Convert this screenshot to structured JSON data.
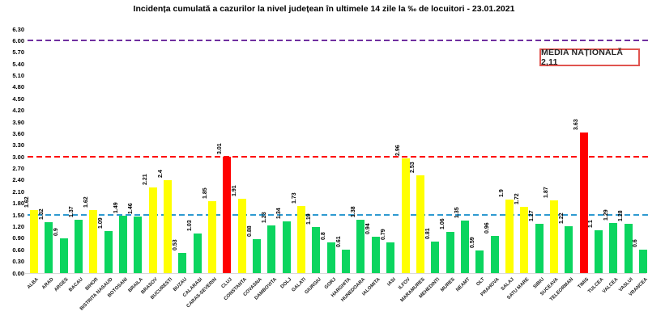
{
  "title": "Incidența cumulată a cazurilor la nivel județean în ultimele 14 zile la ‰ de locuitori - 23.01.2021",
  "annotation_box": {
    "label": "MEDIA NAȚIONALĂ 2,11"
  },
  "chart_data": {
    "type": "bar",
    "title": "Incidența cumulată a cazurilor la nivel județean în ultimele 14 zile la ‰ de locuitori - 23.01.2021",
    "xlabel": "",
    "ylabel": "",
    "ylim": [
      0,
      6.3
    ],
    "ytick_step": 0.3,
    "grid": false,
    "legend": "none",
    "categories": [
      "ALBA",
      "ARAD",
      "ARGES",
      "BACAU",
      "BIHOR",
      "BISTRITA NASAUD",
      "BOTOSANI",
      "BRAILA",
      "BRASOV",
      "BUCURESTI",
      "BUZAU",
      "CALARASI",
      "CARAS-SEVERIN",
      "CLUJ",
      "CONSTANTA",
      "COVASNA",
      "DAMBOVITA",
      "DOLJ",
      "GALATI",
      "GIURGIU",
      "GORJ",
      "HARGHITA",
      "HUNEDOARA",
      "IALOMITA",
      "IASI",
      "ILFOV",
      "MARAMURES",
      "MEHEDINTI",
      "MURES",
      "NEAMT",
      "OLT",
      "PRAHOVA",
      "SALAJ",
      "SATU MARE",
      "SIBIU",
      "SUCEAVA",
      "TELEORMAN",
      "TIMIS",
      "TULCEA",
      "VALCEA",
      "VASLUI",
      "VRANCEA"
    ],
    "values": [
      1.62,
      1.32,
      0.9,
      1.37,
      1.62,
      1.09,
      1.49,
      1.46,
      2.21,
      2.4,
      0.53,
      1.03,
      1.85,
      3.01,
      1.91,
      0.88,
      1.23,
      1.34,
      1.73,
      1.19,
      0.8,
      0.61,
      1.38,
      0.94,
      0.79,
      2.96,
      2.53,
      0.81,
      1.06,
      1.35,
      0.59,
      0.96,
      1.9,
      1.72,
      1.27,
      1.87,
      1.22,
      3.63,
      1.1,
      1.29,
      1.28,
      0.6
    ],
    "bar_colors": [
      "yellow",
      "green",
      "green",
      "green",
      "yellow",
      "green",
      "green",
      "green",
      "yellow",
      "yellow",
      "green",
      "green",
      "yellow",
      "red",
      "yellow",
      "green",
      "green",
      "green",
      "yellow",
      "green",
      "green",
      "green",
      "green",
      "green",
      "green",
      "yellow",
      "yellow",
      "green",
      "green",
      "green",
      "green",
      "green",
      "yellow",
      "yellow",
      "green",
      "yellow",
      "green",
      "red",
      "green",
      "green",
      "green",
      "green"
    ],
    "palette": {
      "green": "#0bd55f",
      "yellow": "#ffff00",
      "red": "#fe0000"
    },
    "reference_lines": [
      {
        "value": 6.0,
        "color": "#7030a0",
        "style": "dashed",
        "name": "upper-threshold"
      },
      {
        "value": 3.0,
        "color": "#ff0000",
        "style": "dashed",
        "name": "red-zone-threshold"
      },
      {
        "value": 1.5,
        "color": "#2e9ad0",
        "style": "dashed",
        "name": "yellow-zone-threshold"
      }
    ],
    "annotation": {
      "text": "MEDIA NAȚIONALĂ 2,11"
    }
  }
}
